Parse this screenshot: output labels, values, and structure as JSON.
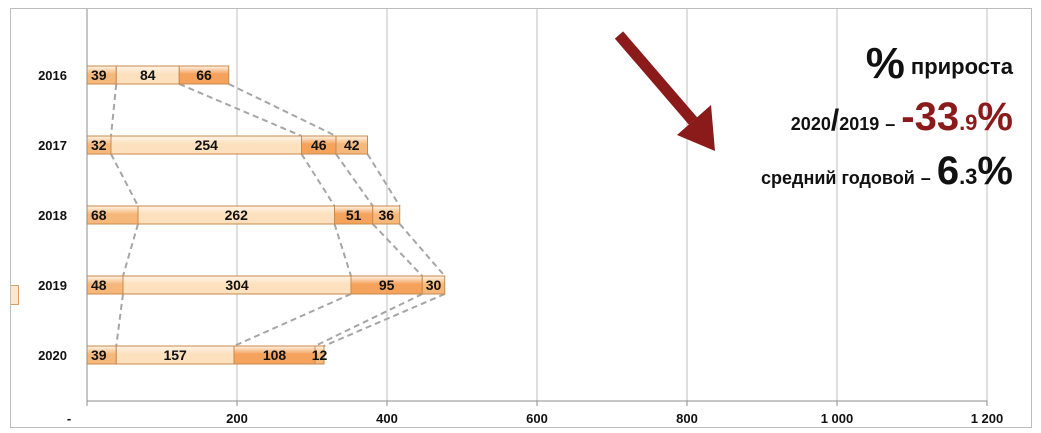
{
  "chart_data": {
    "type": "bar",
    "orientation": "horizontal",
    "stacked": true,
    "categories": [
      "2016",
      "2017",
      "2018",
      "2019",
      "2020"
    ],
    "series": [
      {
        "values": [
          39,
          32,
          68,
          48,
          39
        ]
      },
      {
        "values": [
          84,
          254,
          262,
          304,
          157
        ]
      },
      {
        "values": [
          66,
          46,
          51,
          95,
          108
        ]
      },
      {
        "values": [
          0,
          42,
          36,
          30,
          12
        ]
      }
    ],
    "xlim": [
      0,
      1200
    ],
    "xticks": [
      0,
      200,
      400,
      600,
      800,
      1000,
      1200
    ],
    "xtick_labels": [
      "-",
      "200",
      "400",
      "600",
      "800",
      "1 000",
      "1 200"
    ],
    "grid": "vertical",
    "series_lines": true,
    "colors": {
      "bar_fill": [
        "#f6b87a",
        "#fde0be",
        "#f4a25c"
      ],
      "bar_stroke": "#c98a4b",
      "series_line": "#a6a6a6",
      "grid": "#bfbfbf",
      "arrow": "#8b1a1a"
    }
  },
  "annotation": {
    "percent_sign": "%",
    "title_word": "прироста",
    "period_left": "2020",
    "period_slash": "/",
    "period_right": "2019",
    "dash": "–",
    "change_int": "-33",
    "change_dec": ".9",
    "change_pct": "%",
    "avg_label": "средний годовой",
    "avg_int": "6",
    "avg_dec": ".3",
    "avg_pct": "%",
    "accent_color": "#8b1a1a"
  }
}
